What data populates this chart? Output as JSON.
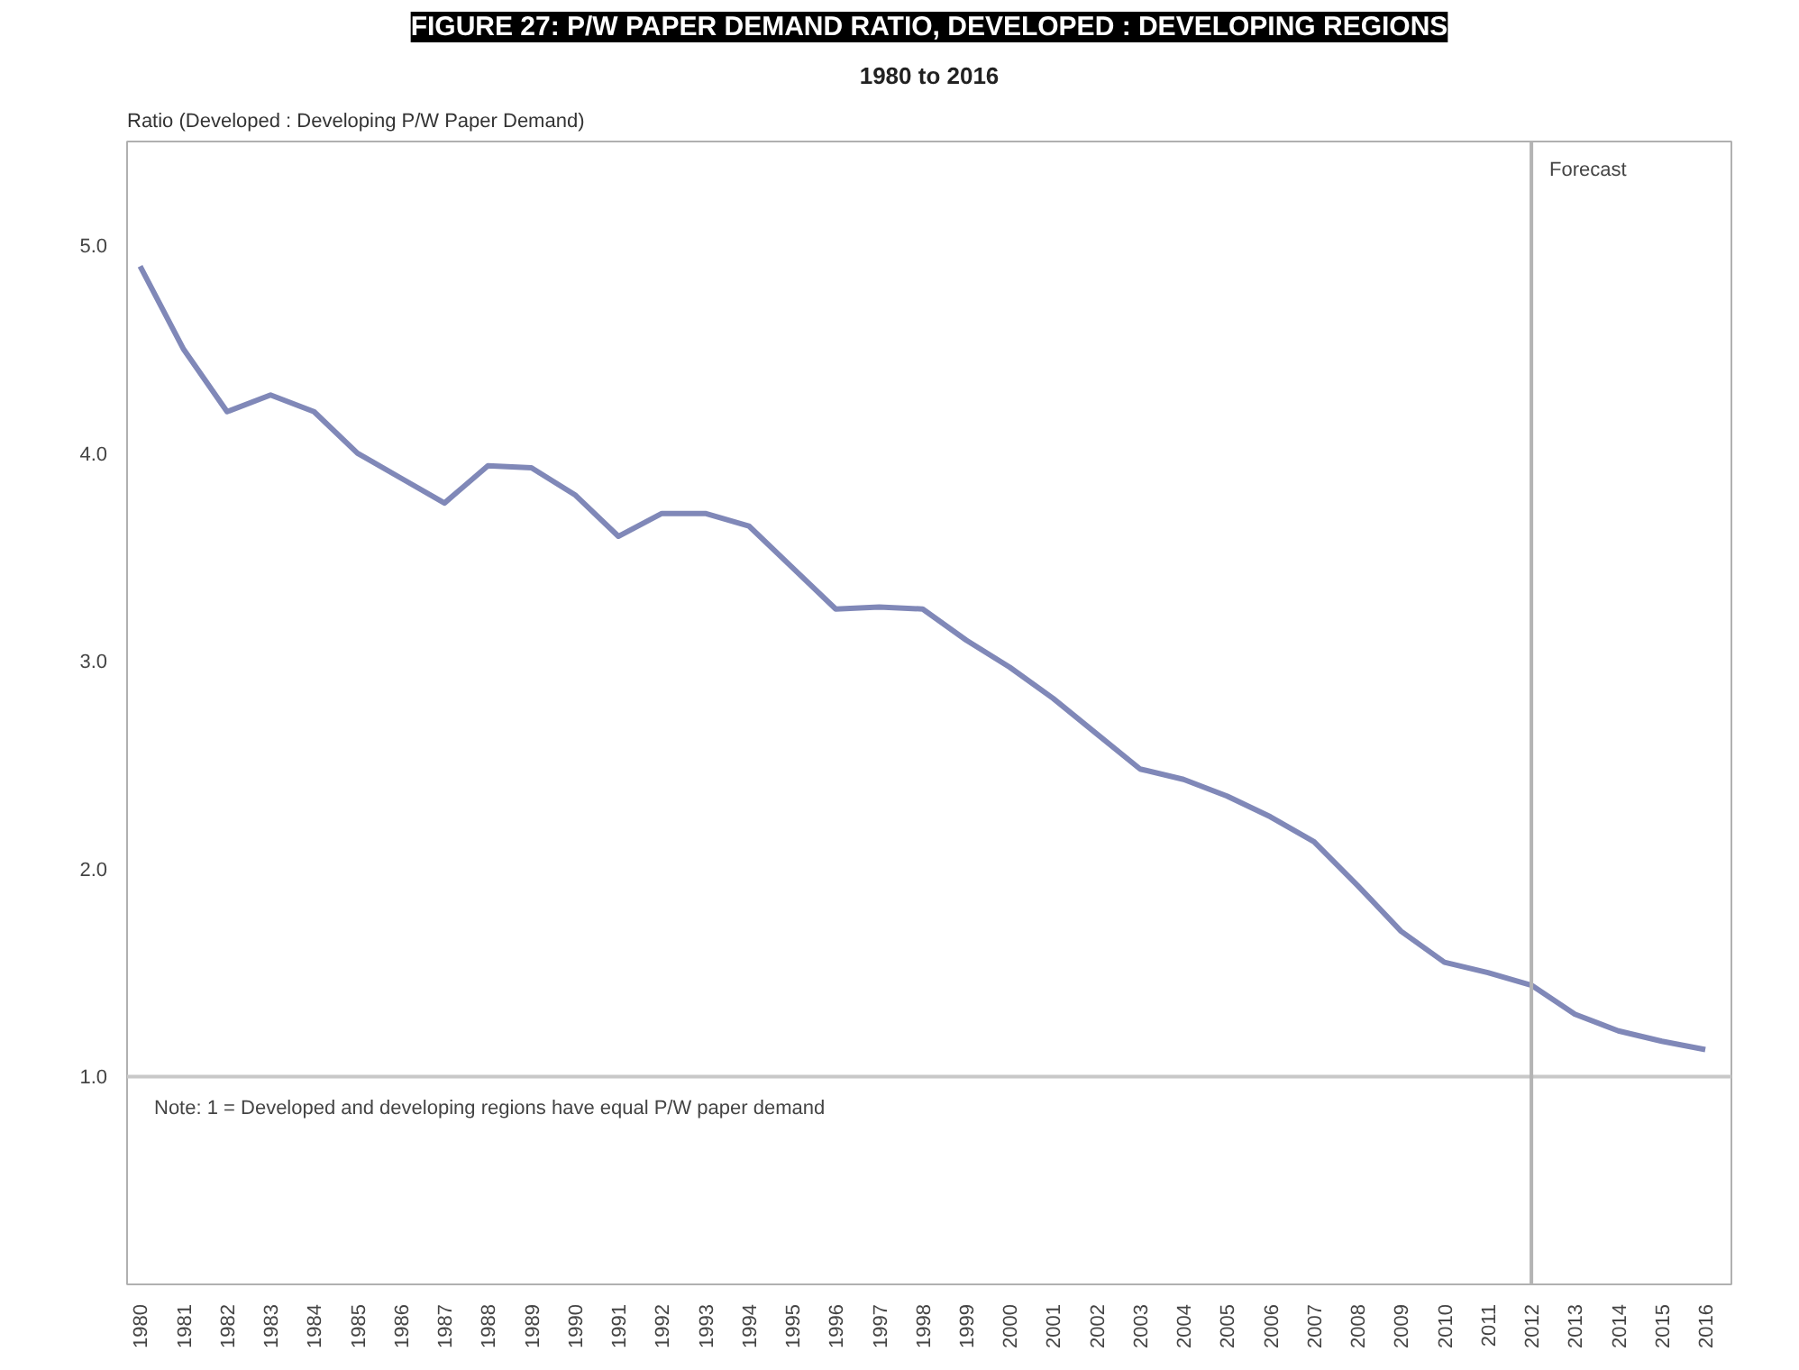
{
  "chart_data": {
    "type": "line",
    "title": "FIGURE 27: P/W PAPER DEMAND RATIO, DEVELOPED : DEVELOPING REGIONS",
    "subtitle": "1980 to 2016",
    "ylabel": "Ratio (Developed : Developing P/W Paper Demand)",
    "x": [
      1980,
      1981,
      1982,
      1983,
      1984,
      1985,
      1986,
      1987,
      1988,
      1989,
      1990,
      1991,
      1992,
      1993,
      1994,
      1995,
      1996,
      1997,
      1998,
      1999,
      2000,
      2001,
      2002,
      2003,
      2004,
      2005,
      2006,
      2007,
      2008,
      2009,
      2010,
      2011,
      2012,
      2013,
      2014,
      2015,
      2016
    ],
    "series": [
      {
        "color": "#8088b8",
        "values": [
          4.9,
          4.5,
          4.2,
          4.28,
          4.2,
          4.0,
          3.88,
          3.76,
          3.94,
          3.93,
          3.8,
          3.6,
          3.71,
          3.71,
          3.65,
          3.45,
          3.25,
          3.26,
          3.25,
          3.1,
          2.97,
          2.82,
          2.65,
          2.48,
          2.43,
          2.35,
          2.25,
          2.13,
          1.92,
          1.7,
          1.55,
          1.5,
          1.44,
          1.3,
          1.22,
          1.17,
          1.13
        ]
      }
    ],
    "xlim": [
      1979.7,
      2016.6
    ],
    "xticks": [
      1980,
      1981,
      1982,
      1983,
      1984,
      1985,
      1986,
      1987,
      1988,
      1989,
      1990,
      1991,
      1992,
      1993,
      1994,
      1995,
      1996,
      1997,
      1998,
      1999,
      2000,
      2001,
      2002,
      2003,
      2004,
      2005,
      2006,
      2007,
      2008,
      2009,
      2010,
      2011,
      2012,
      2013,
      2014,
      2015,
      2016
    ],
    "ylim": [
      0,
      5.5
    ],
    "yticks": [
      {
        "value": 1,
        "label": "1.0"
      },
      {
        "value": 2,
        "label": "2.0"
      },
      {
        "value": 3,
        "label": "3.0"
      },
      {
        "value": 4,
        "label": "4.0"
      },
      {
        "value": 5,
        "label": "5.0"
      }
    ],
    "ref_lines": [
      {
        "axis": "y",
        "value": 1,
        "label": "Note: 1 = Developed and developing regions have equal P/W paper demand",
        "color": "#c8c8c8"
      },
      {
        "axis": "x",
        "value": 2012,
        "label": "Forecast",
        "color": "#b4b4b4"
      }
    ],
    "grid": false,
    "marker": "none",
    "line_style": "solid"
  }
}
